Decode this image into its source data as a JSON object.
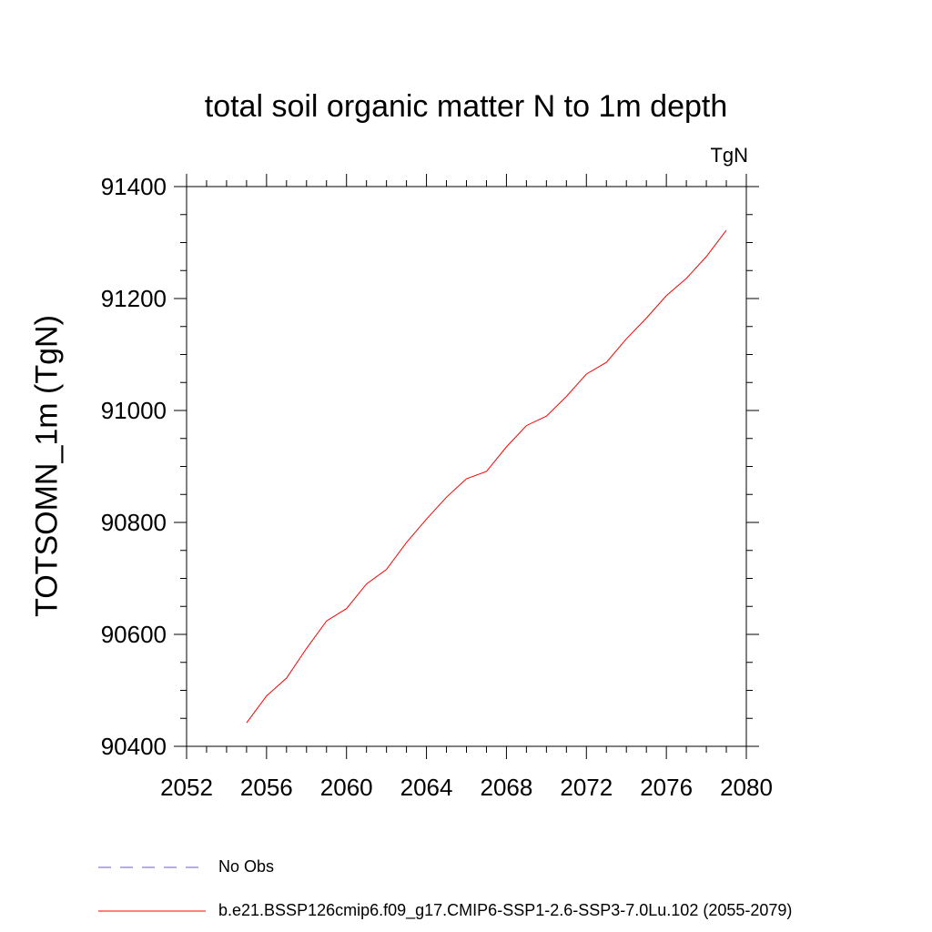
{
  "chart_data": {
    "type": "line",
    "title": "total soil organic matter N to 1m depth",
    "units_label": "TgN",
    "ylabel": "TOTSOMN_1m  (TgN)",
    "xlabel": "",
    "xlim": [
      2052,
      2080
    ],
    "ylim": [
      90400,
      91400
    ],
    "x_ticks": [
      "2052",
      "2056",
      "2060",
      "2064",
      "2068",
      "2072",
      "2076",
      "2080"
    ],
    "y_ticks": [
      "90400",
      "90600",
      "90800",
      "91000",
      "91200",
      "91400"
    ],
    "grid": false,
    "legend_position": "bottom",
    "series": [
      {
        "name": "No Obs",
        "color": "#6a5acd",
        "dash": "dashed",
        "x": [],
        "y": []
      },
      {
        "name": "b.e21.BSSP126cmip6.f09_g17.CMIP6-SSP1-2.6-SSP3-7.0Lu.102 (2055-2079)",
        "color": "#ff0000",
        "dash": "solid",
        "x": [
          2055,
          2056,
          2057,
          2058,
          2059,
          2060,
          2061,
          2062,
          2063,
          2064,
          2065,
          2066,
          2067,
          2068,
          2069,
          2070,
          2071,
          2072,
          2073,
          2074,
          2075,
          2076,
          2077,
          2078,
          2079
        ],
        "y": [
          90442,
          90490,
          90522,
          90575,
          90624,
          90646,
          90690,
          90716,
          90764,
          90806,
          90845,
          90878,
          90891,
          90935,
          90973,
          90990,
          91025,
          91065,
          91086,
          91128,
          91165,
          91205,
          91236,
          91275,
          91322
        ]
      }
    ]
  }
}
